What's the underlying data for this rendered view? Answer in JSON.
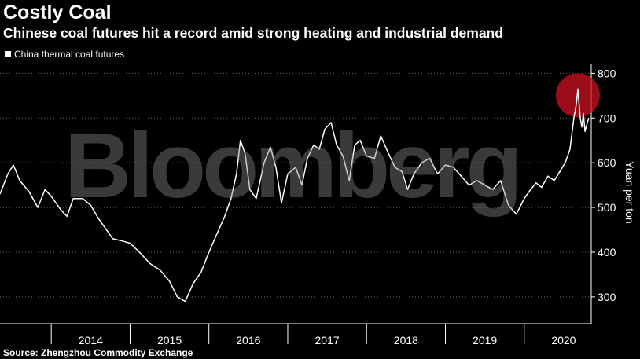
{
  "title": "Costly Coal",
  "subtitle": "Chinese coal futures hit a record amid strong heating and industrial demand",
  "legend": {
    "label": "China thermal coal futures",
    "color": "#ffffff"
  },
  "source": "Source: Zhengzhou Commodity Exchange",
  "watermark": "Bloomberg",
  "highlight_color": "#cc1020",
  "chart_data": {
    "type": "line",
    "title": "Costly Coal",
    "subtitle": "Chinese coal futures hit a record amid strong heating and industrial demand",
    "ylabel": "Yuan per ton",
    "ylim": [
      240,
      820
    ],
    "yticks": [
      300,
      400,
      500,
      600,
      700,
      800
    ],
    "xlim": [
      2013.35,
      2020.85
    ],
    "xticks": [
      "2014",
      "2015",
      "2016",
      "2017",
      "2018",
      "2019",
      "2020"
    ],
    "legend_position": "top-left",
    "grid": "horizontal dotted",
    "series": [
      {
        "name": "China thermal coal futures",
        "color": "#ffffff",
        "x": [
          2013.35,
          2013.45,
          2013.52,
          2013.6,
          2013.72,
          2013.83,
          2013.92,
          2014.0,
          2014.12,
          2014.2,
          2014.28,
          2014.4,
          2014.5,
          2014.6,
          2014.68,
          2014.78,
          2014.9,
          2015.0,
          2015.12,
          2015.25,
          2015.38,
          2015.5,
          2015.6,
          2015.7,
          2015.8,
          2015.9,
          2016.0,
          2016.1,
          2016.2,
          2016.28,
          2016.35,
          2016.4,
          2016.46,
          2016.52,
          2016.6,
          2016.7,
          2016.78,
          2016.85,
          2016.92,
          2017.0,
          2017.1,
          2017.18,
          2017.25,
          2017.33,
          2017.4,
          2017.47,
          2017.55,
          2017.62,
          2017.7,
          2017.78,
          2017.85,
          2017.92,
          2018.0,
          2018.1,
          2018.18,
          2018.28,
          2018.36,
          2018.45,
          2018.52,
          2018.6,
          2018.7,
          2018.8,
          2018.9,
          2019.0,
          2019.1,
          2019.2,
          2019.3,
          2019.4,
          2019.5,
          2019.6,
          2019.7,
          2019.8,
          2019.9,
          2020.0,
          2020.08,
          2020.15,
          2020.22,
          2020.3,
          2020.38,
          2020.45,
          2020.52,
          2020.58,
          2020.63,
          2020.66,
          2020.68,
          2020.71,
          2020.73,
          2020.75,
          2020.77,
          2020.8,
          2020.82
        ],
        "y": [
          530,
          575,
          595,
          560,
          535,
          500,
          540,
          525,
          495,
          480,
          520,
          520,
          505,
          475,
          455,
          430,
          425,
          420,
          400,
          375,
          360,
          335,
          300,
          290,
          330,
          355,
          400,
          440,
          480,
          520,
          575,
          650,
          620,
          540,
          520,
          600,
          635,
          590,
          510,
          575,
          590,
          550,
          610,
          640,
          630,
          675,
          690,
          640,
          615,
          560,
          640,
          650,
          615,
          610,
          660,
          620,
          590,
          580,
          540,
          575,
          600,
          610,
          575,
          595,
          590,
          570,
          550,
          560,
          550,
          540,
          560,
          505,
          485,
          520,
          540,
          555,
          545,
          570,
          560,
          580,
          600,
          630,
          700,
          730,
          765,
          700,
          680,
          710,
          670,
          690,
          700
        ]
      }
    ],
    "annotations": [
      {
        "type": "highlight-circle",
        "x": 2020.68,
        "y": 765
      }
    ]
  }
}
